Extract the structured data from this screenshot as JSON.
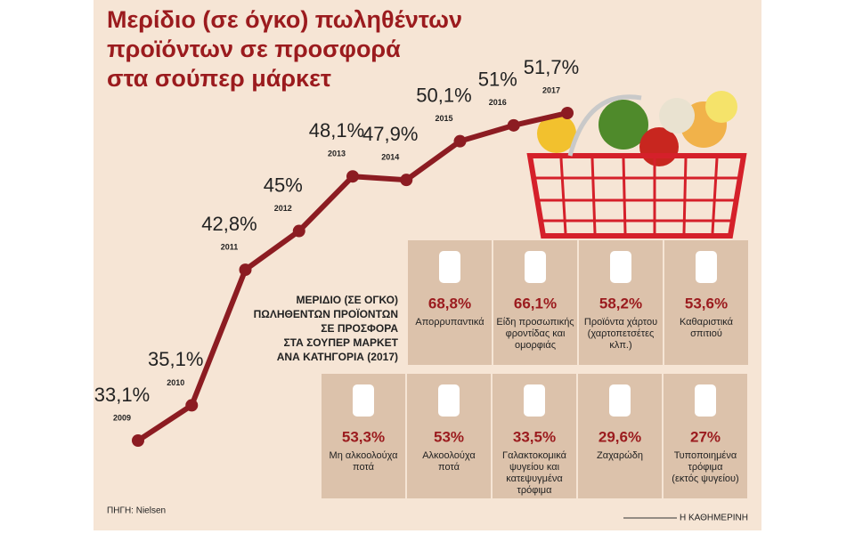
{
  "chart_data": {
    "type": "line",
    "title": [
      "Μερίδιο (σε όγκο) πωληθέντων",
      "προϊόντων σε προσφορά",
      "στα σούπερ μάρκετ"
    ],
    "categories": [
      "2009",
      "2010",
      "2011",
      "2012",
      "2013",
      "2014",
      "2015",
      "2016",
      "2017"
    ],
    "values": [
      33.1,
      35.1,
      42.8,
      45,
      48.1,
      47.9,
      50.1,
      51,
      51.7
    ],
    "value_labels": [
      "33,1%",
      "35,1%",
      "42,8%",
      "45%",
      "48,1%",
      "47,9%",
      "50,1%",
      "51%",
      "51,7%"
    ],
    "color": "#8c1c22",
    "panel": {
      "title": [
        "ΜΕΡΙΔΙΟ (ΣΕ ΟΓΚΟ)",
        "ΠΩΛΗΘΕΝΤΩΝ ΠΡΟΪΟΝΤΩΝ",
        "ΣΕ ΠΡΟΣΦΟΡΑ",
        "ΣΤΑ ΣΟΥΠΕΡ ΜΑΡΚΕΤ",
        "ΑΝΑ ΚΑΤΗΓΟΡΙΑ (2017)"
      ],
      "items": [
        {
          "label": [
            "Απορρυπαντικά"
          ],
          "value": 68.8,
          "value_label": "68,8%"
        },
        {
          "label": [
            "Είδη προσωπικής",
            "φροντίδας και",
            "ομορφιάς"
          ],
          "value": 66.1,
          "value_label": "66,1%"
        },
        {
          "label": [
            "Προϊόντα χάρτου",
            "(χαρτοπετσέτες",
            "κλπ.)"
          ],
          "value": 58.2,
          "value_label": "58,2%"
        },
        {
          "label": [
            "Καθαριστικά",
            "σπιτιού"
          ],
          "value": 53.6,
          "value_label": "53,6%"
        },
        {
          "label": [
            "Μη αλκοολούχα",
            "ποτά"
          ],
          "value": 53.3,
          "value_label": "53,3%"
        },
        {
          "label": [
            "Αλκοολούχα",
            "ποτά"
          ],
          "value": 53,
          "value_label": "53%"
        },
        {
          "label": [
            "Γαλακτοκομικά",
            "ψυγείου και",
            "κατεψυγμένα",
            "τρόφιμα"
          ],
          "value": 33.5,
          "value_label": "33,5%"
        },
        {
          "label": [
            "Ζαχαρώδη"
          ],
          "value": 29.6,
          "value_label": "29,6%"
        },
        {
          "label": [
            "Τυποποιημένα",
            "τρόφιμα",
            "(εκτός ψυγείου)"
          ],
          "value": 27,
          "value_label": "27%"
        }
      ]
    },
    "source": "ΠΗΓΗ: Nielsen",
    "publisher": "Η ΚΑΘΗΜΕΡΙΝΗ"
  }
}
